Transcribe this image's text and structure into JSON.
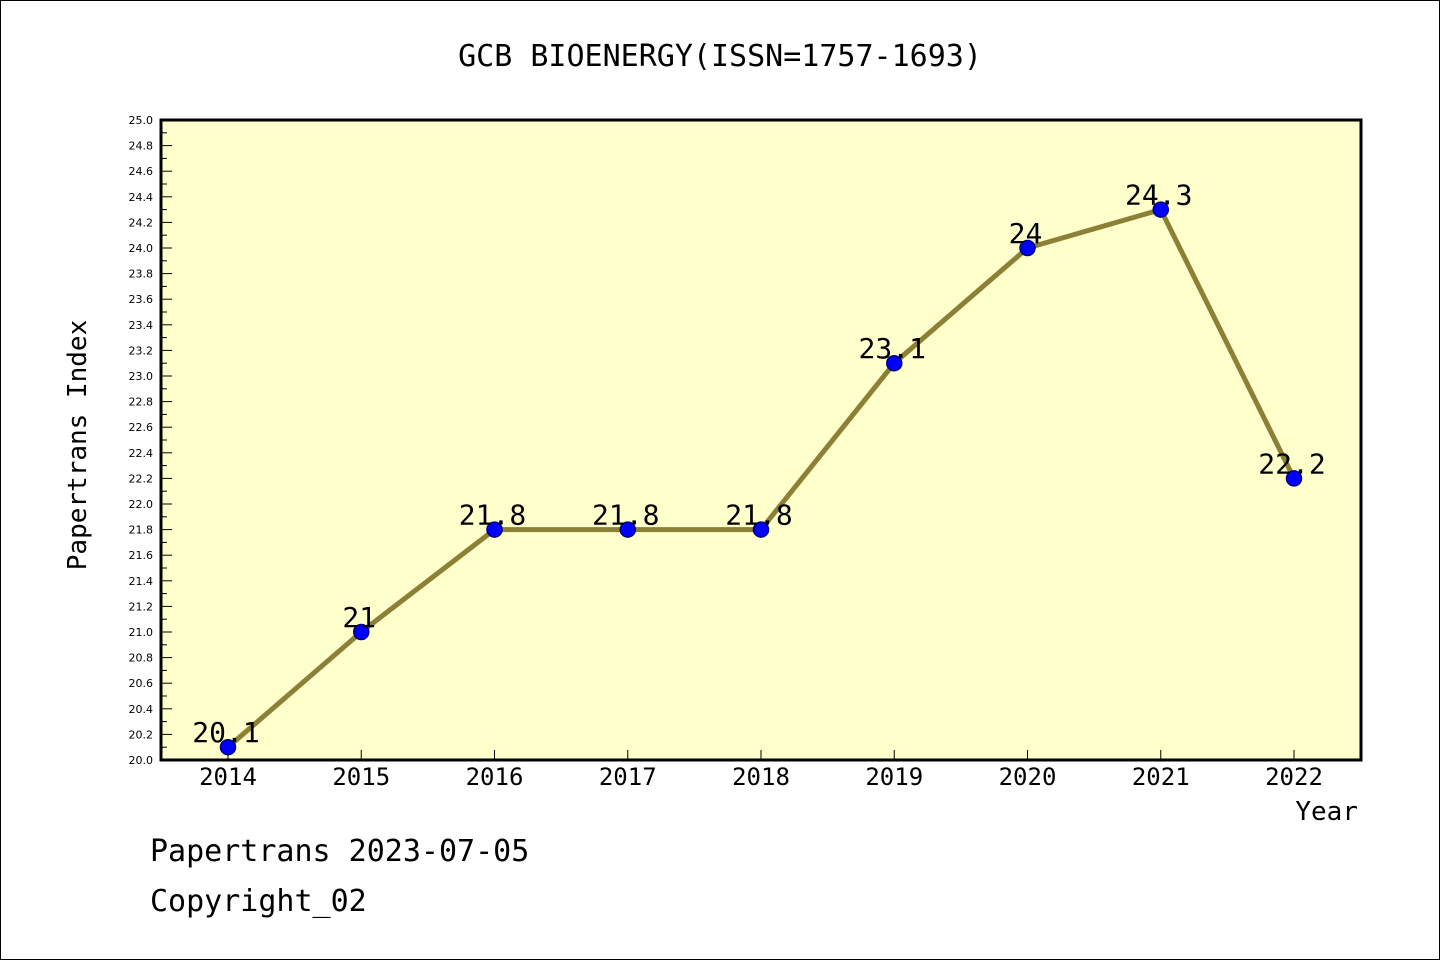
{
  "chart_data": {
    "type": "line",
    "title": "GCB BIOENERGY(ISSN=1757-1693)",
    "xlabel": "Year",
    "ylabel": "Papertrans Index",
    "categories": [
      "2014",
      "2015",
      "2016",
      "2017",
      "2018",
      "2019",
      "2020",
      "2021",
      "2022"
    ],
    "values": [
      20.1,
      21,
      21.8,
      21.8,
      21.8,
      23.1,
      24,
      24.3,
      22.2
    ],
    "data_labels": [
      "20.1",
      "21",
      "21.8",
      "21.8",
      "21.8",
      "23.1",
      "24",
      "24.3",
      "22.2"
    ],
    "ylim": [
      20.0,
      25.0
    ],
    "y_ticks": [
      "20.0",
      "20.2",
      "20.4",
      "20.6",
      "20.8",
      "21.0",
      "21.2",
      "21.4",
      "21.6",
      "21.8",
      "22.0",
      "22.2",
      "22.4",
      "22.6",
      "22.8",
      "23.0",
      "23.2",
      "23.4",
      "23.6",
      "23.8",
      "24.0",
      "24.2",
      "24.4",
      "24.6",
      "24.8",
      "25.0"
    ],
    "grid": false,
    "colors": {
      "plot_background": "#ffffcc",
      "line": "#8b8035",
      "marker": "#0000ff",
      "marker_edge": "#000080"
    }
  },
  "footer": {
    "line1": "Papertrans 2023-07-05",
    "line2": "Copyright_02"
  }
}
